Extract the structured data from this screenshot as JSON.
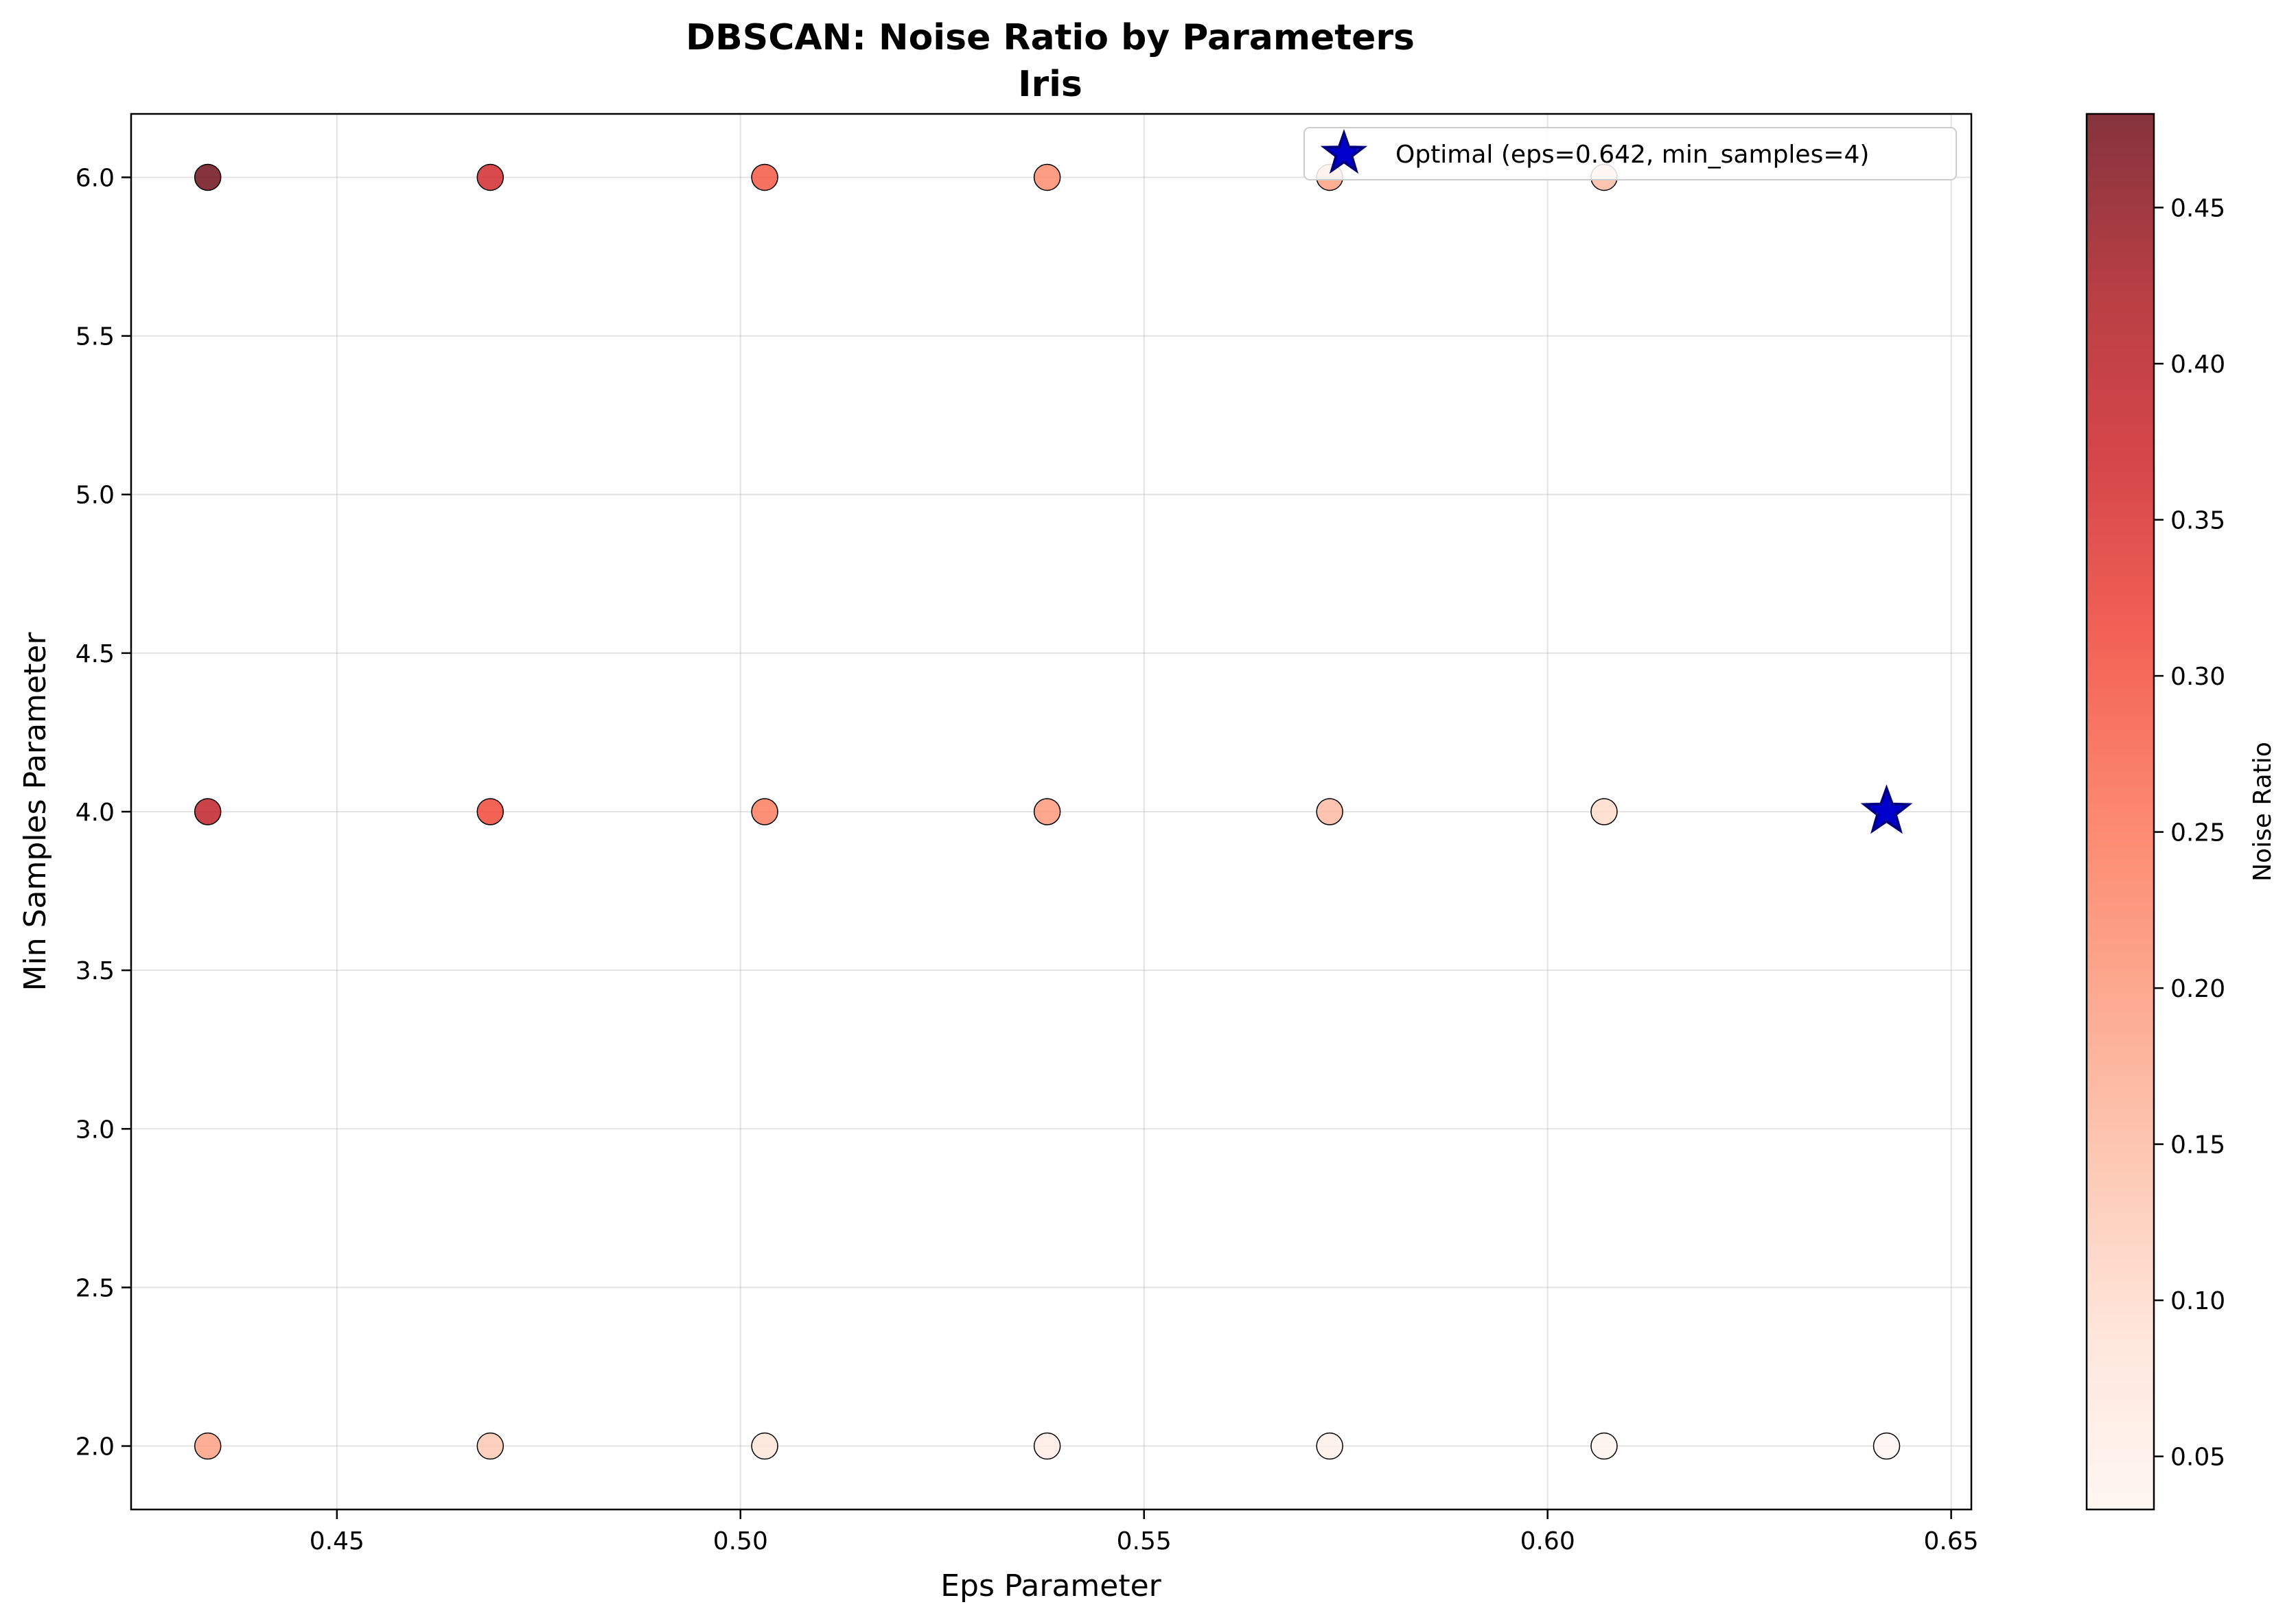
{
  "chart_data": {
    "type": "scatter",
    "title": "DBSCAN: Noise Ratio by Parameters",
    "subtitle": "Iris",
    "xlabel": "Eps Parameter",
    "ylabel": "Min Samples Parameter",
    "xlim": [
      0.4245,
      0.6525
    ],
    "ylim": [
      1.8,
      6.2
    ],
    "xticks": [
      "0.45",
      "0.50",
      "0.55",
      "0.60",
      "0.65"
    ],
    "yticks": [
      "2.0",
      "2.5",
      "3.0",
      "3.5",
      "4.0",
      "4.5",
      "5.0",
      "5.5",
      "6.0"
    ],
    "grid": true,
    "colorbar": {
      "label": "Noise Ratio",
      "range": [
        0.033,
        0.48
      ],
      "ticks": [
        "0.05",
        "0.10",
        "0.15",
        "0.20",
        "0.25",
        "0.30",
        "0.35",
        "0.40",
        "0.45"
      ],
      "colormap": "Reds"
    },
    "points": [
      {
        "x": 0.434,
        "y": 6,
        "noise_ratio": 0.48
      },
      {
        "x": 0.469,
        "y": 6,
        "noise_ratio": 0.36
      },
      {
        "x": 0.503,
        "y": 6,
        "noise_ratio": 0.29
      },
      {
        "x": 0.538,
        "y": 6,
        "noise_ratio": 0.22
      },
      {
        "x": 0.573,
        "y": 6,
        "noise_ratio": 0.19
      },
      {
        "x": 0.607,
        "y": 6,
        "noise_ratio": 0.15
      },
      {
        "x": 0.434,
        "y": 4,
        "noise_ratio": 0.39
      },
      {
        "x": 0.469,
        "y": 4,
        "noise_ratio": 0.31
      },
      {
        "x": 0.503,
        "y": 4,
        "noise_ratio": 0.24
      },
      {
        "x": 0.538,
        "y": 4,
        "noise_ratio": 0.2
      },
      {
        "x": 0.573,
        "y": 4,
        "noise_ratio": 0.15
      },
      {
        "x": 0.607,
        "y": 4,
        "noise_ratio": 0.1
      },
      {
        "x": 0.434,
        "y": 2,
        "noise_ratio": 0.19
      },
      {
        "x": 0.469,
        "y": 2,
        "noise_ratio": 0.13
      },
      {
        "x": 0.503,
        "y": 2,
        "noise_ratio": 0.08
      },
      {
        "x": 0.538,
        "y": 2,
        "noise_ratio": 0.06
      },
      {
        "x": 0.573,
        "y": 2,
        "noise_ratio": 0.05
      },
      {
        "x": 0.607,
        "y": 2,
        "noise_ratio": 0.04
      },
      {
        "x": 0.642,
        "y": 2,
        "noise_ratio": 0.033
      }
    ],
    "optimal": {
      "x": 0.642,
      "y": 4,
      "color": "#0000cc"
    },
    "legend": {
      "label": "Optimal (eps=0.642, min_samples=4)",
      "placement": "top-right"
    }
  }
}
